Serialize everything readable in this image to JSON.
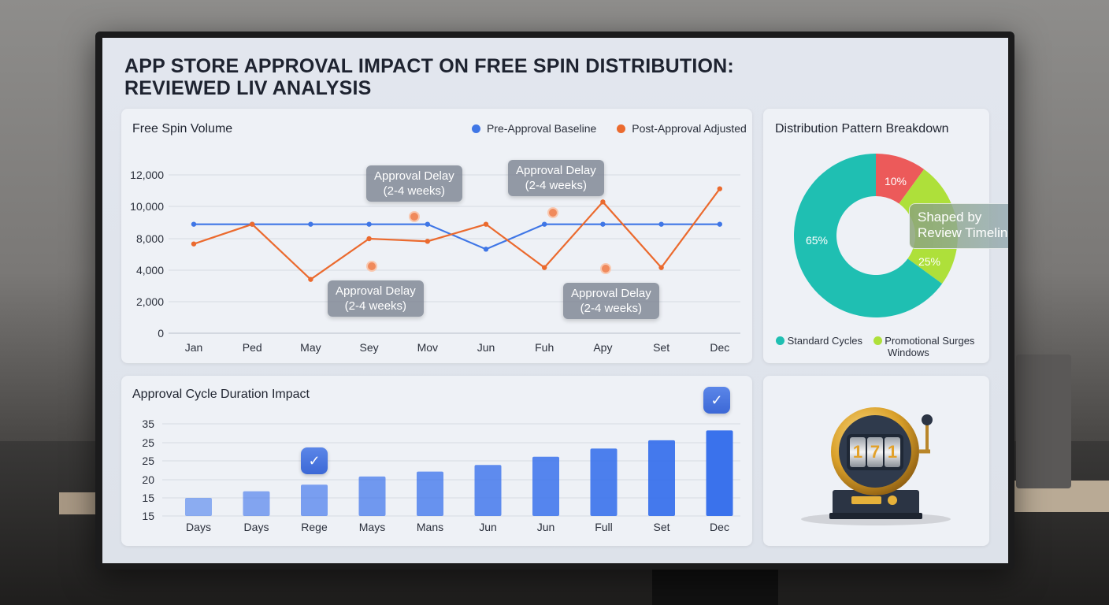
{
  "title_line1": "APP STORE APPROVAL IMPACT ON FREE SPIN DISTRIBUTION:",
  "title_line2": "REVIEWED LIV ANALYSIS",
  "colors": {
    "blue": "#3f76e6",
    "orange": "#eb6a2e",
    "teal": "#1fbfb2",
    "red": "#ec5a5a",
    "lime": "#aee03a",
    "bar": "#3a72ec"
  },
  "line_chart": {
    "title": "Free Spin Volume",
    "legend": [
      "Pre-Approval Baseline",
      "Post-Approval Adjusted"
    ],
    "callout_text": "Approval Delay\n(2-4 weeks)",
    "callouts": [
      "Approval Delay (2-4 weeks)",
      "Approval Delay (2-4 weeks)",
      "Approval Delay (2-4 weeks)",
      "Approval Delay (2-4 weeks)"
    ]
  },
  "donut": {
    "title": "Distribution Pattern Breakdown",
    "labels": [
      "10%",
      "65%",
      "25%"
    ],
    "callout": "Shaped by Review Timelines",
    "legend": [
      "Standard Cycles",
      "Promotional Surges",
      "Windows"
    ]
  },
  "bar_chart_title": "Approval Cycle Duration Impact",
  "chart_data": [
    {
      "type": "line",
      "title": "Free Spin Volume",
      "categories": [
        "Jan",
        "Ped",
        "May",
        "Sey",
        "Mov",
        "Jun",
        "Fuh",
        "Apy",
        "Set",
        "Dec"
      ],
      "yticks": [
        "0",
        "2,000",
        "4,000",
        "8,000",
        "10,000",
        "12,000"
      ],
      "ylim": [
        0,
        12000
      ],
      "series": [
        {
          "name": "Pre-Approval Baseline",
          "values": [
            8300,
            8300,
            8300,
            8300,
            8300,
            6400,
            8300,
            8300,
            8300,
            8300
          ]
        },
        {
          "name": "Post-Approval Adjusted",
          "values": [
            6800,
            8300,
            4100,
            7200,
            7000,
            8300,
            5000,
            10000,
            5000,
            11000
          ]
        }
      ],
      "legend_position": "top-right",
      "grid": "horizontal"
    },
    {
      "type": "pie",
      "title": "Distribution Pattern Breakdown",
      "labels": [
        "Standard Cycles",
        "Promotional Surges",
        "Windows"
      ],
      "values": [
        65,
        25,
        10
      ],
      "value_labels": [
        "65%",
        "25%",
        "10%"
      ]
    },
    {
      "type": "bar",
      "title": "Approval Cycle Duration Impact",
      "categories": [
        "Days",
        "Days",
        "Rege",
        "Mays",
        "Mans",
        "Jun",
        "Jun",
        "Full",
        "Set",
        "Dec"
      ],
      "yticks": [
        "15",
        "15",
        "20",
        "25",
        "25",
        "35"
      ],
      "values": [
        12.5,
        14.5,
        16.5,
        19,
        20.5,
        22.5,
        25,
        27.5,
        30,
        33
      ],
      "ylim": [
        7,
        35
      ]
    }
  ]
}
